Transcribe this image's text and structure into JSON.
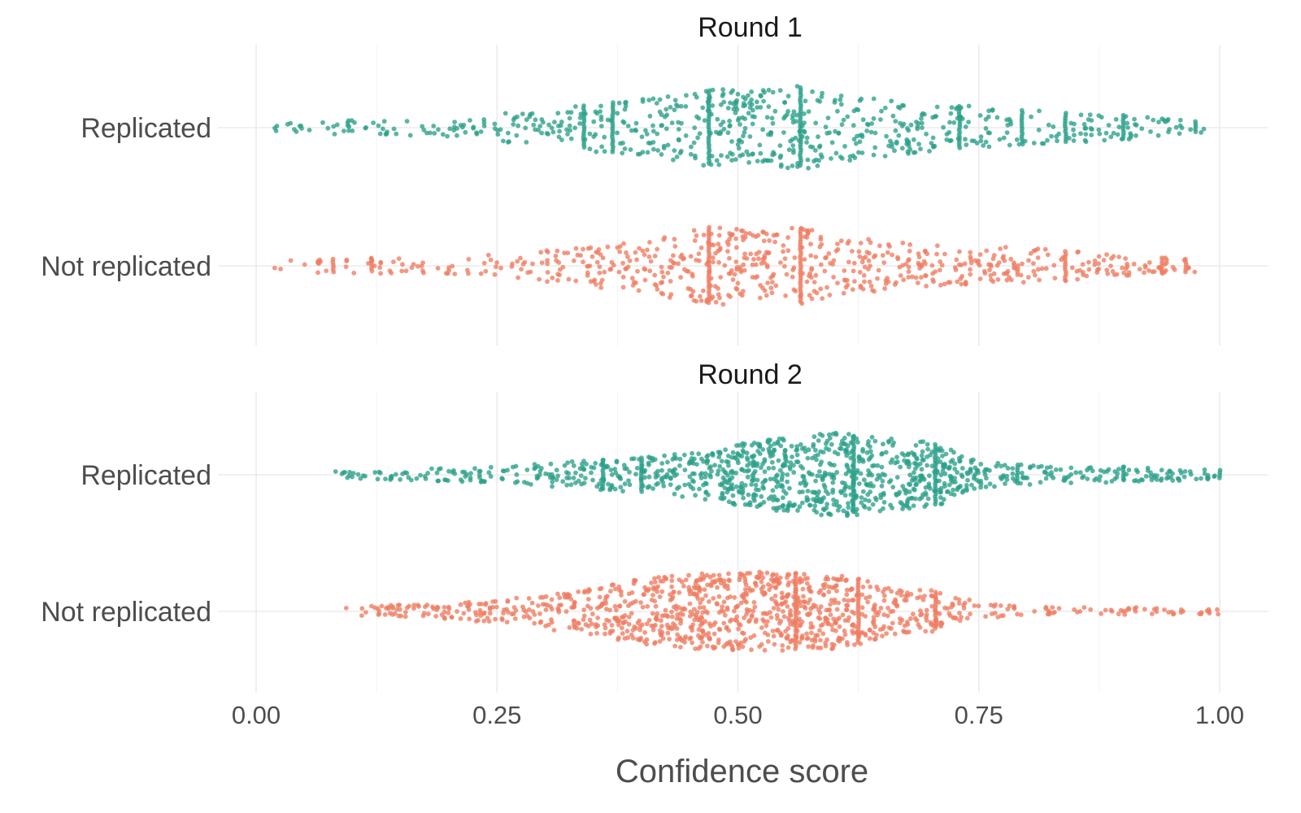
{
  "chart_data": {
    "type": "beeswarm",
    "xlabel": "Confidence score",
    "xlim": [
      0,
      1
    ],
    "x_ticks": [
      0,
      0.25,
      0.5,
      0.75,
      1
    ],
    "x_tick_labels": [
      "0.00",
      "0.25",
      "0.50",
      "0.75",
      "1.00"
    ],
    "categories": [
      "Replicated",
      "Not replicated"
    ],
    "colors": {
      "Replicated": "#2ca089",
      "Not replicated": "#ee7c62"
    },
    "grid": true,
    "panels": [
      {
        "title": "Round 1",
        "series": [
          {
            "name": "Replicated",
            "approx_n": 660,
            "range": [
              0.01,
              0.99
            ],
            "peak_values": [
              0.47,
              0.565
            ],
            "dense_score_columns": [
              0.34,
              0.37,
              0.47,
              0.565,
              0.73,
              0.795,
              0.84,
              0.9,
              0.975
            ]
          },
          {
            "name": "Not replicated",
            "approx_n": 660,
            "range": [
              0.01,
              0.975
            ],
            "peak_values": [
              0.47,
              0.565
            ],
            "dense_score_columns": [
              0.08,
              0.12,
              0.47,
              0.565,
              0.84,
              0.94,
              0.965
            ]
          }
        ]
      },
      {
        "title": "Round 2",
        "series": [
          {
            "name": "Replicated",
            "approx_n": 1100,
            "range": [
              0.075,
              1.0
            ],
            "peak_values": [
              0.6,
              0.62
            ],
            "dense_score_columns": [
              0.36,
              0.4,
              0.62,
              0.705,
              0.79,
              0.9,
              1.0
            ]
          },
          {
            "name": "Not replicated",
            "approx_n": 1100,
            "range": [
              0.09,
              1.0
            ],
            "peak_values": [
              0.5,
              0.56
            ],
            "dense_score_columns": [
              0.56,
              0.625,
              0.705
            ]
          }
        ]
      }
    ]
  }
}
